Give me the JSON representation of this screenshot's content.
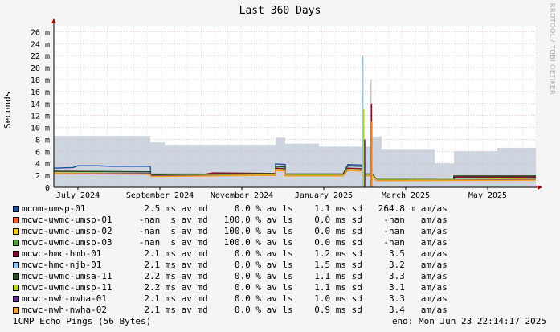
{
  "chart_data": {
    "type": "area",
    "title": "Last 360 Days",
    "ylabel": "Seconds",
    "ylim": [
      0,
      27
    ],
    "y_unit_suffix": "m",
    "y_ticks": [
      0,
      2,
      4,
      6,
      8,
      10,
      12,
      14,
      16,
      18,
      20,
      22,
      24,
      26
    ],
    "x_ticks": [
      "July 2024",
      "September 2024",
      "November 2024",
      "January 2025",
      "March 2025",
      "May 2025"
    ],
    "grid": true,
    "watermark": "RRDTOOL / TOBI OETIKER",
    "ping_loss_band": {
      "description_color": "#ccd5e0",
      "segments_ms": [
        {
          "x0": 0.0,
          "x1": 0.2,
          "top": 8.6
        },
        {
          "x0": 0.2,
          "x1": 0.23,
          "top": 7.5
        },
        {
          "x0": 0.23,
          "x1": 0.46,
          "top": 7.1
        },
        {
          "x0": 0.46,
          "x1": 0.48,
          "top": 8.3
        },
        {
          "x0": 0.48,
          "x1": 0.55,
          "top": 7.3
        },
        {
          "x0": 0.55,
          "x1": 0.66,
          "top": 6.8
        },
        {
          "x0": 0.66,
          "x1": 0.68,
          "top": 8.5
        },
        {
          "x0": 0.68,
          "x1": 0.79,
          "top": 6.4
        },
        {
          "x0": 0.79,
          "x1": 0.83,
          "top": 4.0
        },
        {
          "x0": 0.83,
          "x1": 0.92,
          "top": 6.0
        },
        {
          "x0": 0.92,
          "x1": 1.0,
          "top": 6.6
        }
      ]
    },
    "series": [
      {
        "name": "mcmm-umsp-01",
        "color": "#1f4e9b",
        "avg": "2.5",
        "loss": "0.0",
        "sd": "1.1",
        "amas": "264.8 m",
        "values": [
          [
            0.0,
            3.2
          ],
          [
            0.04,
            3.3
          ],
          [
            0.05,
            3.6
          ],
          [
            0.09,
            3.6
          ],
          [
            0.12,
            3.5
          ],
          [
            0.2,
            3.5
          ],
          [
            0.201,
            2.2
          ],
          [
            0.3,
            2.2
          ],
          [
            0.46,
            2.1
          ],
          [
            0.46,
            3.9
          ],
          [
            0.48,
            3.8
          ],
          [
            0.48,
            2.2
          ],
          [
            0.55,
            2.2
          ],
          [
            0.6,
            2.2
          ],
          [
            0.61,
            3.8
          ],
          [
            0.64,
            3.7
          ],
          [
            0.64,
            2.2
          ],
          [
            0.66,
            2.2
          ],
          [
            0.67,
            1.2
          ],
          [
            0.83,
            1.2
          ],
          [
            0.83,
            1.8
          ],
          [
            1.0,
            1.8
          ]
        ]
      },
      {
        "name": "mcwc-uwmc-umsp-01",
        "color": "#ff5a1f",
        "avg": "-nan",
        "loss": "100.0",
        "sd": "0.0",
        "amas": "-nan",
        "values": []
      },
      {
        "name": "mcwc-uwmc-umsp-02",
        "color": "#ffcc00",
        "avg": "-nan",
        "loss": "100.0",
        "sd": "0.0",
        "amas": "-nan",
        "values": []
      },
      {
        "name": "mcwc-uwmc-umsp-03",
        "color": "#55a035",
        "avg": "-nan",
        "loss": "100.0",
        "sd": "0.0",
        "amas": "-nan",
        "values": []
      },
      {
        "name": "mcwc-hmc-hmb-01",
        "color": "#8b0a30",
        "avg": "2.1",
        "loss": "0.0",
        "sd": "1.2",
        "amas": "3.5",
        "values": [
          [
            0.0,
            2.6
          ],
          [
            0.2,
            2.5
          ],
          [
            0.201,
            2.0
          ],
          [
            0.3,
            2.0
          ],
          [
            0.33,
            2.4
          ],
          [
            0.46,
            2.3
          ],
          [
            0.46,
            3.2
          ],
          [
            0.48,
            3.1
          ],
          [
            0.48,
            2.2
          ],
          [
            0.55,
            2.2
          ],
          [
            0.6,
            2.2
          ],
          [
            0.61,
            3.2
          ],
          [
            0.64,
            3.1
          ],
          [
            0.64,
            2.2
          ],
          [
            0.66,
            2.2
          ],
          [
            0.67,
            1.2
          ],
          [
            0.83,
            1.3
          ],
          [
            0.83,
            1.7
          ],
          [
            1.0,
            1.7
          ]
        ]
      },
      {
        "name": "mcwc-hmc-njb-01",
        "color": "#8ac8f0",
        "avg": "2.1",
        "loss": "0.0",
        "sd": "1.5",
        "amas": "3.2",
        "values": [
          [
            0.0,
            2.5
          ],
          [
            0.2,
            2.4
          ],
          [
            0.201,
            2.0
          ],
          [
            0.46,
            2.2
          ],
          [
            0.46,
            3.4
          ],
          [
            0.48,
            3.3
          ],
          [
            0.48,
            2.1
          ],
          [
            0.6,
            2.1
          ],
          [
            0.61,
            3.5
          ],
          [
            0.64,
            3.4
          ],
          [
            0.64,
            2.1
          ],
          [
            0.66,
            2.1
          ],
          [
            0.67,
            1.2
          ],
          [
            1.0,
            1.5
          ]
        ]
      },
      {
        "name": "mcwc-uwmc-umsa-11",
        "color": "#2d4d1a",
        "avg": "2.2",
        "loss": "0.0",
        "sd": "1.1",
        "amas": "3.3",
        "values": [
          [
            0.0,
            2.7
          ],
          [
            0.2,
            2.6
          ],
          [
            0.201,
            2.1
          ],
          [
            0.46,
            2.3
          ],
          [
            0.46,
            3.5
          ],
          [
            0.48,
            3.4
          ],
          [
            0.48,
            2.2
          ],
          [
            0.6,
            2.2
          ],
          [
            0.61,
            3.6
          ],
          [
            0.64,
            3.5
          ],
          [
            0.64,
            2.2
          ],
          [
            0.66,
            2.2
          ],
          [
            0.67,
            1.3
          ],
          [
            0.83,
            1.3
          ],
          [
            0.83,
            1.9
          ],
          [
            1.0,
            1.9
          ]
        ]
      },
      {
        "name": "mcwc-uwmc-umsp-11",
        "color": "#b8d418",
        "avg": "2.2",
        "loss": "0.0",
        "sd": "1.1",
        "amas": "3.1",
        "values": [
          [
            0.0,
            2.4
          ],
          [
            0.2,
            2.3
          ],
          [
            0.201,
            1.9
          ],
          [
            0.46,
            2.1
          ],
          [
            0.46,
            3.0
          ],
          [
            0.48,
            2.9
          ],
          [
            0.48,
            2.0
          ],
          [
            0.6,
            2.0
          ],
          [
            0.61,
            3.0
          ],
          [
            0.64,
            2.9
          ],
          [
            0.64,
            2.0
          ],
          [
            0.66,
            2.0
          ],
          [
            0.67,
            1.2
          ],
          [
            1.0,
            1.4
          ]
        ]
      },
      {
        "name": "mcwc-nwh-nwha-01",
        "color": "#5d2e8c",
        "avg": "2.1",
        "loss": "0.0",
        "sd": "1.0",
        "amas": "3.3",
        "values": [
          [
            0.0,
            2.3
          ],
          [
            0.2,
            2.3
          ],
          [
            0.201,
            1.9
          ],
          [
            0.46,
            2.0
          ],
          [
            0.46,
            2.9
          ],
          [
            0.48,
            2.8
          ],
          [
            0.48,
            1.9
          ],
          [
            0.6,
            1.9
          ],
          [
            0.61,
            2.9
          ],
          [
            0.64,
            2.8
          ],
          [
            0.64,
            1.9
          ],
          [
            0.66,
            1.9
          ],
          [
            0.67,
            1.1
          ],
          [
            1.0,
            1.3
          ]
        ]
      },
      {
        "name": "mcwc-nwh-nwha-02",
        "color": "#ff9f1c",
        "avg": "2.1",
        "loss": "0.0",
        "sd": "0.9",
        "amas": "3.4",
        "values": [
          [
            0.0,
            2.3
          ],
          [
            0.2,
            2.2
          ],
          [
            0.201,
            1.8
          ],
          [
            0.46,
            2.0
          ],
          [
            0.46,
            2.8
          ],
          [
            0.48,
            2.7
          ],
          [
            0.48,
            1.9
          ],
          [
            0.6,
            1.9
          ],
          [
            0.61,
            2.8
          ],
          [
            0.64,
            2.7
          ],
          [
            0.64,
            1.9
          ],
          [
            0.66,
            1.9
          ],
          [
            0.67,
            1.1
          ],
          [
            1.0,
            1.2
          ]
        ]
      }
    ],
    "spikes": [
      {
        "x": 0.641,
        "top": 22.0,
        "color": "#8ac8f0"
      },
      {
        "x": 0.643,
        "top": 13.0,
        "color": "#b8d418"
      },
      {
        "x": 0.645,
        "top": 8.0,
        "color": "#5d2e8c"
      },
      {
        "x": 0.658,
        "top": 18.0,
        "color": "#c8c8c8"
      },
      {
        "x": 0.659,
        "top": 14.0,
        "color": "#8b0a30"
      },
      {
        "x": 0.66,
        "top": 11.0,
        "color": "#ff9f1c"
      }
    ]
  },
  "legend_rows": [
    "mcmm-umsp-01           2.5 ms av md     0.0 % av ls    1.1 ms sd   264.8 m am/as",
    "mcwc-uwmc-umsp-01     -nan  s av md   100.0 % av ls    0.0 ms sd    -nan   am/as",
    "mcwc-uwmc-umsp-02     -nan  s av md   100.0 % av ls    0.0 ms sd    -nan   am/as",
    "mcwc-uwmc-umsp-03     -nan  s av md   100.0 % av ls    0.0 ms sd    -nan   am/as",
    "mcwc-hmc-hmb-01        2.1 ms av md     0.0 % av ls    1.2 ms sd     3.5   am/as",
    "mcwc-hmc-njb-01        2.1 ms av md     0.0 % av ls    1.5 ms sd     3.2   am/as",
    "mcwc-uwmc-umsa-11      2.2 ms av md     0.0 % av ls    1.1 ms sd     3.3   am/as",
    "mcwc-uwmc-umsp-11      2.2 ms av md     0.0 % av ls    1.1 ms sd     3.1   am/as",
    "mcwc-nwh-nwha-01       2.1 ms av md     0.0 % av ls    1.0 ms sd     3.3   am/as",
    "mcwc-nwh-nwha-02       2.1 ms av md     0.0 % av ls    0.9 ms sd     3.4   am/as"
  ],
  "footer": {
    "left": "ICMP Echo Pings (56 Bytes)",
    "right": "end: Mon Jun 23 22:14:17 2025"
  }
}
